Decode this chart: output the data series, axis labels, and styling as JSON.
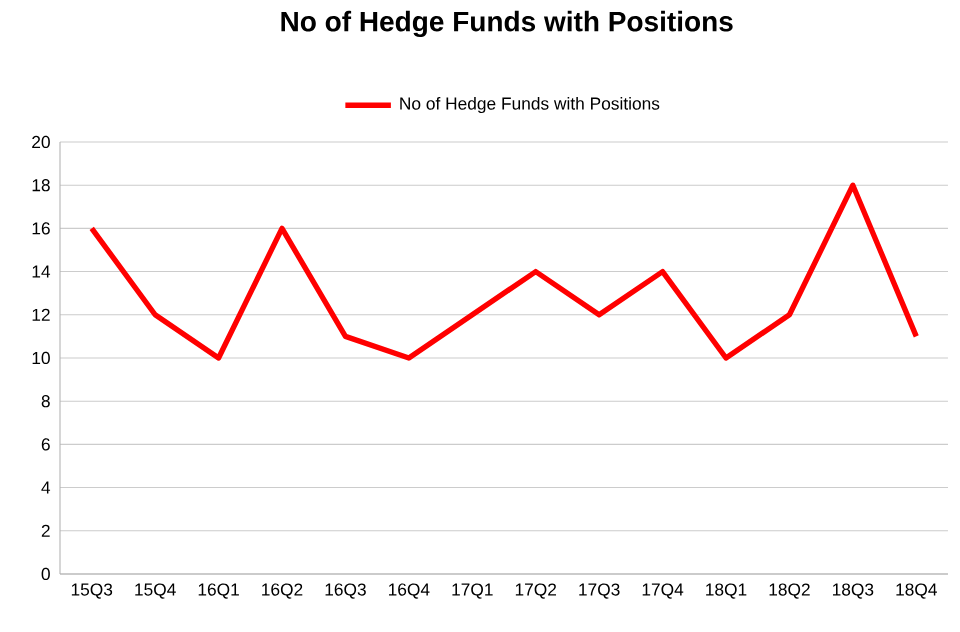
{
  "chart_data": {
    "type": "line",
    "title": "No of Hedge Funds with Positions",
    "categories": [
      "15Q3",
      "15Q4",
      "16Q1",
      "16Q2",
      "16Q3",
      "16Q4",
      "17Q1",
      "17Q2",
      "17Q3",
      "17Q4",
      "18Q1",
      "18Q2",
      "18Q3",
      "18Q4"
    ],
    "series": [
      {
        "name": "No of Hedge Funds with Positions",
        "color": "#ff0000",
        "values": [
          16,
          12,
          10,
          16,
          11,
          10,
          12,
          14,
          12,
          14,
          10,
          12,
          18,
          11
        ]
      }
    ],
    "ylim": [
      0,
      20
    ],
    "yticks": [
      0,
      2,
      4,
      6,
      8,
      10,
      12,
      14,
      16,
      18,
      20
    ],
    "grid": "y",
    "legend": "top",
    "marker": "none",
    "line_style": "solid"
  }
}
